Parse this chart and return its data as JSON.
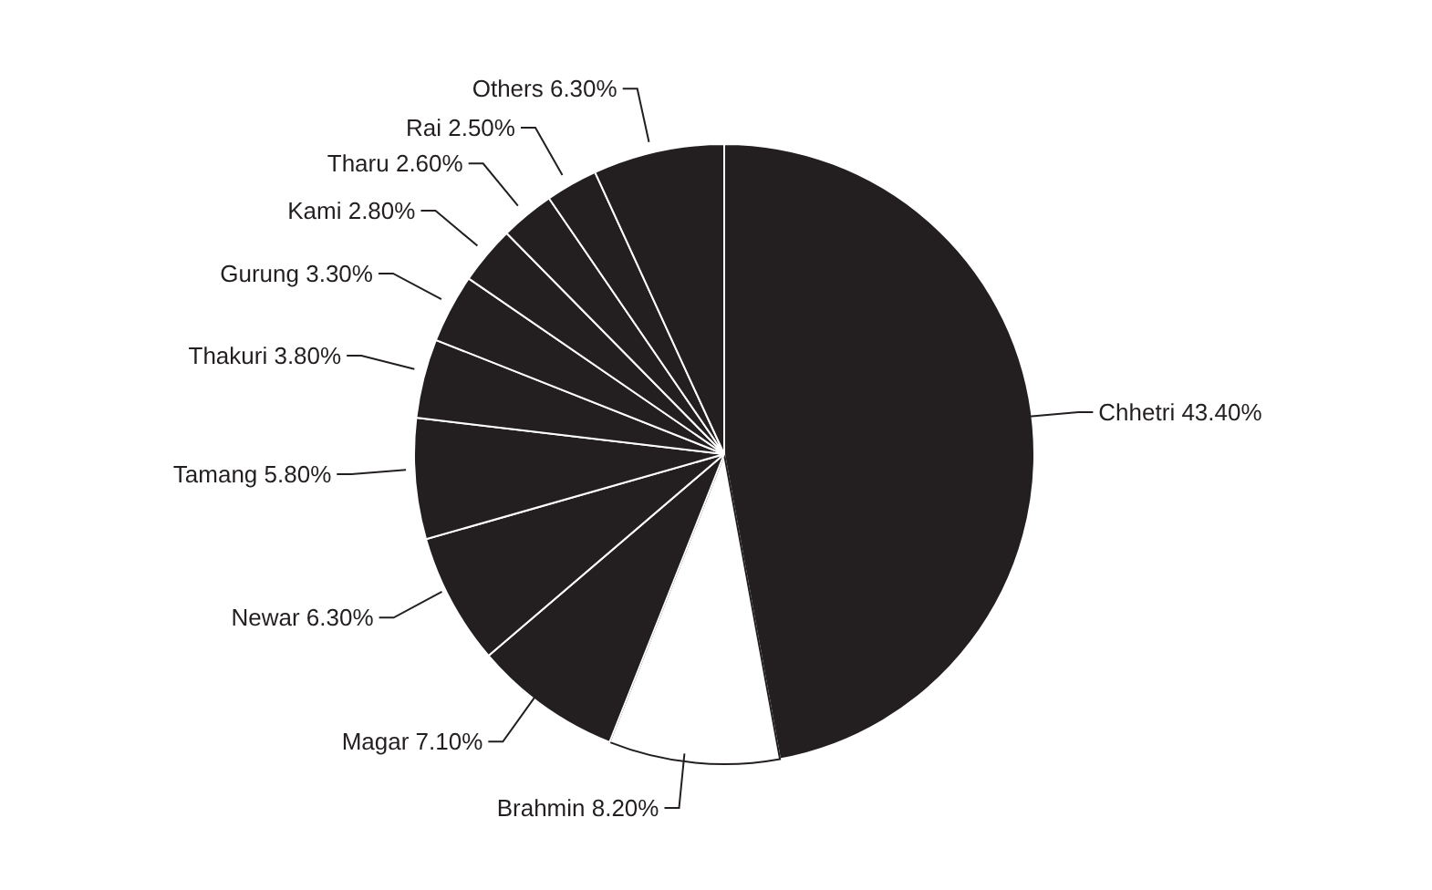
{
  "chart_data": {
    "type": "pie",
    "categories": [
      "Chhetri",
      "Brahmin",
      "Magar",
      "Newar",
      "Tamang",
      "Thakuri",
      "Gurung",
      "Kami",
      "Tharu",
      "Rai",
      "Others"
    ],
    "values": [
      43.4,
      8.2,
      7.1,
      6.3,
      5.8,
      3.8,
      3.3,
      2.8,
      2.6,
      2.5,
      6.3
    ],
    "value_labels": [
      "43.40%",
      "8.20%",
      "7.10%",
      "6.30%",
      "5.80%",
      "3.80%",
      "3.30%",
      "2.80%",
      "2.60%",
      "2.50%",
      "6.30%"
    ],
    "colors": [
      "#231f20",
      "#ffffff",
      "#231f20",
      "#231f20",
      "#231f20",
      "#231f20",
      "#231f20",
      "#231f20",
      "#231f20",
      "#231f20",
      "#231f20"
    ]
  }
}
